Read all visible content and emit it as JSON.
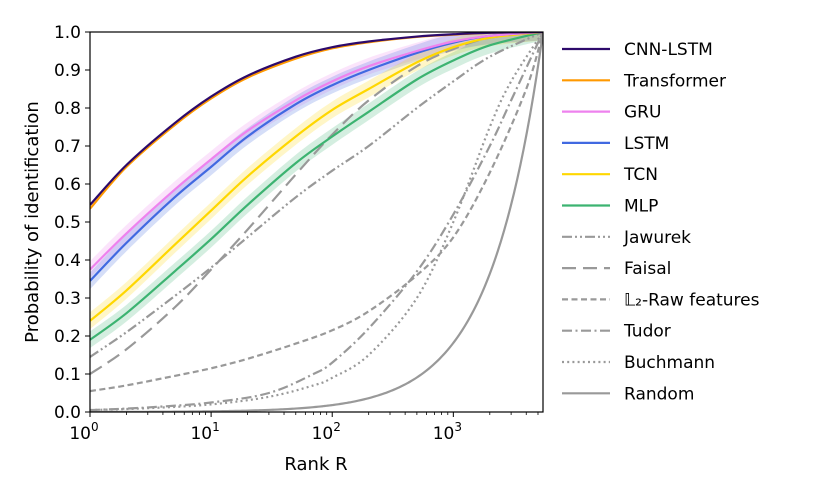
{
  "chart_data": {
    "type": "line",
    "xlabel": "Rank R",
    "ylabel": "Probability of identification",
    "xscale": "log",
    "xlim": [
      1,
      5500
    ],
    "ylim": [
      0,
      1
    ],
    "grid": false,
    "legend_position": "right-outside",
    "x_ticks": [
      {
        "value": 1,
        "base": "10",
        "exp": "0"
      },
      {
        "value": 10,
        "base": "10",
        "exp": "1"
      },
      {
        "value": 100,
        "base": "10",
        "exp": "2"
      },
      {
        "value": 1000,
        "base": "10",
        "exp": "3"
      }
    ],
    "y_ticks": [
      "0.0",
      "0.1",
      "0.2",
      "0.3",
      "0.4",
      "0.5",
      "0.6",
      "0.7",
      "0.8",
      "0.9",
      "1.0"
    ],
    "series": [
      {
        "name": "CNN-LSTM",
        "color": "#2d0a6b",
        "style": "solid",
        "band": false,
        "points": [
          [
            1,
            0.545
          ],
          [
            2,
            0.65
          ],
          [
            5,
            0.76
          ],
          [
            10,
            0.83
          ],
          [
            20,
            0.885
          ],
          [
            50,
            0.935
          ],
          [
            100,
            0.96
          ],
          [
            200,
            0.975
          ],
          [
            500,
            0.988
          ],
          [
            1000,
            0.994
          ],
          [
            2000,
            0.998
          ],
          [
            5500,
            1.0
          ]
        ]
      },
      {
        "name": "Transformer",
        "color": "#ff9900",
        "style": "solid",
        "band": false,
        "points": [
          [
            1,
            0.535
          ],
          [
            2,
            0.645
          ],
          [
            5,
            0.755
          ],
          [
            10,
            0.825
          ],
          [
            20,
            0.88
          ],
          [
            50,
            0.93
          ],
          [
            100,
            0.957
          ],
          [
            200,
            0.973
          ],
          [
            500,
            0.987
          ],
          [
            1000,
            0.993
          ],
          [
            2000,
            0.998
          ],
          [
            5500,
            1.0
          ]
        ]
      },
      {
        "name": "GRU",
        "color": "#ee82ee",
        "style": "solid",
        "band": true,
        "points": [
          [
            1,
            0.375
          ],
          [
            2,
            0.47
          ],
          [
            5,
            0.585
          ],
          [
            10,
            0.665
          ],
          [
            20,
            0.74
          ],
          [
            50,
            0.82
          ],
          [
            100,
            0.87
          ],
          [
            200,
            0.91
          ],
          [
            500,
            0.95
          ],
          [
            1000,
            0.975
          ],
          [
            2000,
            0.99
          ],
          [
            5500,
            1.0
          ]
        ]
      },
      {
        "name": "LSTM",
        "color": "#4169e1",
        "style": "solid",
        "band": true,
        "points": [
          [
            1,
            0.345
          ],
          [
            2,
            0.445
          ],
          [
            5,
            0.565
          ],
          [
            10,
            0.645
          ],
          [
            20,
            0.725
          ],
          [
            50,
            0.81
          ],
          [
            100,
            0.86
          ],
          [
            200,
            0.9
          ],
          [
            500,
            0.945
          ],
          [
            1000,
            0.972
          ],
          [
            2000,
            0.99
          ],
          [
            5500,
            1.0
          ]
        ]
      },
      {
        "name": "TCN",
        "color": "#ffd700",
        "style": "solid",
        "band": true,
        "points": [
          [
            1,
            0.24
          ],
          [
            2,
            0.32
          ],
          [
            5,
            0.44
          ],
          [
            10,
            0.53
          ],
          [
            20,
            0.62
          ],
          [
            50,
            0.725
          ],
          [
            100,
            0.795
          ],
          [
            200,
            0.85
          ],
          [
            500,
            0.92
          ],
          [
            1000,
            0.96
          ],
          [
            2000,
            0.985
          ],
          [
            5500,
            1.0
          ]
        ]
      },
      {
        "name": "MLP",
        "color": "#3cb371",
        "style": "solid",
        "band": true,
        "points": [
          [
            1,
            0.19
          ],
          [
            2,
            0.26
          ],
          [
            5,
            0.37
          ],
          [
            10,
            0.455
          ],
          [
            20,
            0.545
          ],
          [
            50,
            0.655
          ],
          [
            100,
            0.725
          ],
          [
            200,
            0.79
          ],
          [
            500,
            0.875
          ],
          [
            1000,
            0.925
          ],
          [
            2000,
            0.965
          ],
          [
            5500,
            1.0
          ]
        ]
      },
      {
        "name": "Jawurek",
        "color": "#999999",
        "style": "dashdotdot",
        "band": false,
        "points": [
          [
            1,
            0.145
          ],
          [
            2,
            0.21
          ],
          [
            5,
            0.305
          ],
          [
            10,
            0.38
          ],
          [
            20,
            0.46
          ],
          [
            50,
            0.565
          ],
          [
            100,
            0.635
          ],
          [
            200,
            0.7
          ],
          [
            500,
            0.8
          ],
          [
            1000,
            0.87
          ],
          [
            2000,
            0.935
          ],
          [
            5500,
            1.0
          ]
        ]
      },
      {
        "name": "Faisal",
        "color": "#999999",
        "style": "longdash",
        "band": false,
        "points": [
          [
            1,
            0.1
          ],
          [
            2,
            0.165
          ],
          [
            5,
            0.275
          ],
          [
            10,
            0.375
          ],
          [
            20,
            0.48
          ],
          [
            50,
            0.625
          ],
          [
            100,
            0.73
          ],
          [
            200,
            0.82
          ],
          [
            500,
            0.91
          ],
          [
            1000,
            0.955
          ],
          [
            2000,
            0.985
          ],
          [
            5500,
            1.0
          ]
        ]
      },
      {
        "name": "𝕃₂-Raw features",
        "color": "#999999",
        "style": "dashed",
        "band": false,
        "points": [
          [
            1,
            0.055
          ],
          [
            2,
            0.07
          ],
          [
            5,
            0.095
          ],
          [
            10,
            0.115
          ],
          [
            20,
            0.14
          ],
          [
            50,
            0.18
          ],
          [
            100,
            0.215
          ],
          [
            200,
            0.265
          ],
          [
            500,
            0.36
          ],
          [
            1000,
            0.46
          ],
          [
            2000,
            0.63
          ],
          [
            4000,
            0.85
          ],
          [
            5500,
            1.0
          ]
        ]
      },
      {
        "name": "Tudor",
        "color": "#999999",
        "style": "dashdot",
        "band": false,
        "points": [
          [
            1,
            0.005
          ],
          [
            3,
            0.012
          ],
          [
            10,
            0.025
          ],
          [
            30,
            0.05
          ],
          [
            70,
            0.1
          ],
          [
            100,
            0.13
          ],
          [
            200,
            0.22
          ],
          [
            500,
            0.37
          ],
          [
            1000,
            0.52
          ],
          [
            2000,
            0.7
          ],
          [
            3000,
            0.82
          ],
          [
            5500,
            1.0
          ]
        ]
      },
      {
        "name": "Buchmann",
        "color": "#999999",
        "style": "dotted",
        "band": false,
        "points": [
          [
            1,
            0.005
          ],
          [
            3,
            0.01
          ],
          [
            10,
            0.02
          ],
          [
            30,
            0.04
          ],
          [
            70,
            0.07
          ],
          [
            100,
            0.09
          ],
          [
            200,
            0.15
          ],
          [
            500,
            0.3
          ],
          [
            1000,
            0.5
          ],
          [
            2000,
            0.75
          ],
          [
            3000,
            0.87
          ],
          [
            5500,
            1.0
          ]
        ]
      },
      {
        "name": "Random",
        "color": "#999999",
        "style": "solid",
        "band": false,
        "points": "random"
      }
    ]
  }
}
